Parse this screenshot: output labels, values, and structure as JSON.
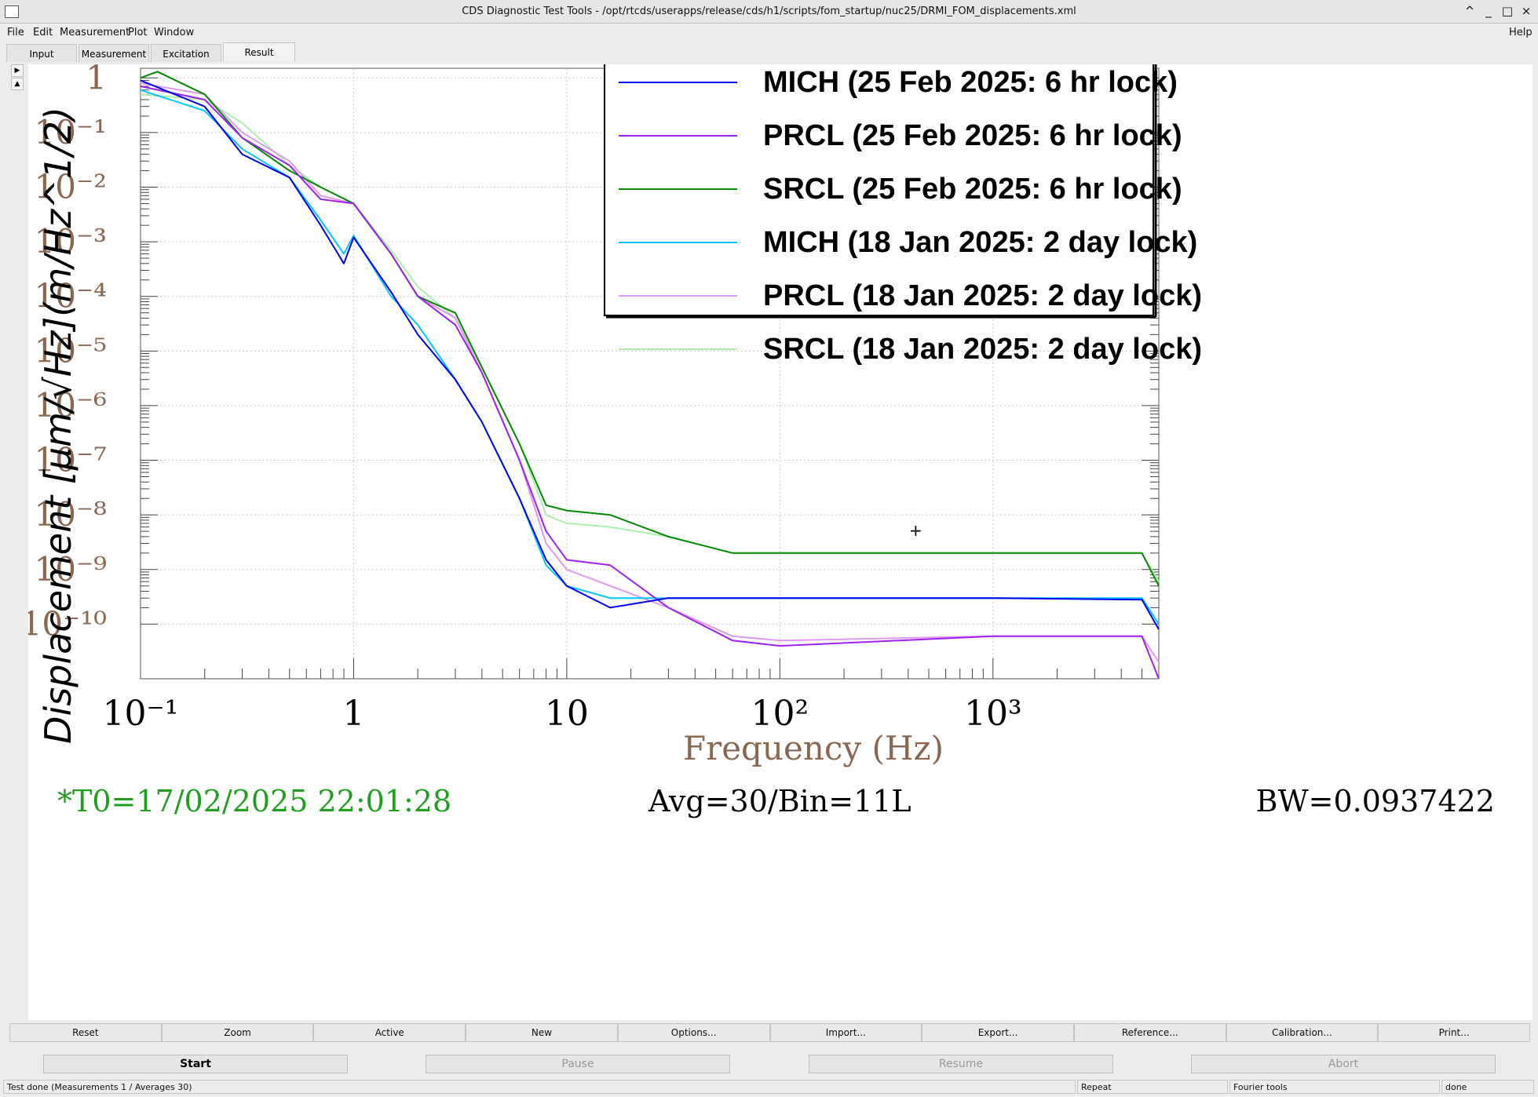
{
  "window": {
    "title": "CDS Diagnostic Test Tools - /opt/rtcds/userapps/release/cds/h1/scripts/fom_startup/nuc25/DRMI_FOM_displacements.xml",
    "controls": [
      "^",
      "_",
      "□",
      "×"
    ]
  },
  "menu": {
    "items": [
      "File",
      "Edit",
      "Measurement",
      "Plot",
      "Window"
    ],
    "help": "Help"
  },
  "tabs": [
    "Input",
    "Measurement",
    "Excitation",
    "Result"
  ],
  "active_tab": "Result",
  "plot": {
    "ylabel": "Displacement  [μm/√Hz](m/Hz^1/2)",
    "xlabel": "Frequency (Hz)",
    "x_ticklabels": [
      "10⁻¹",
      "1",
      "10",
      "10²",
      "10³"
    ],
    "y_ticklabels": [
      "1",
      "10⁻¹",
      "10⁻²",
      "10⁻³",
      "10⁻⁴",
      "10⁻⁵",
      "10⁻⁶",
      "10⁻⁷",
      "10⁻⁸",
      "10⁻⁹",
      "10⁻¹⁰"
    ],
    "info_left": "*T0=17/02/2025 22:01:28",
    "info_center": "Avg=30/Bin=11L",
    "info_right": "BW=0.0937422",
    "cursor_marker": "+"
  },
  "chart_data": {
    "type": "line",
    "xscale": "log",
    "yscale": "log",
    "xlim": [
      0.1,
      6000
    ],
    "ylim": [
      1e-11,
      1.5
    ],
    "grid": true,
    "legend_position": "top-right",
    "xlabel": "Frequency (Hz)",
    "ylabel": "Displacement [μm/√Hz](m/Hz^1/2)",
    "series": [
      {
        "name": "MICH  (25 Feb 2025: 6 hr lock)",
        "color": "#0000ee",
        "x": [
          0.1,
          0.2,
          0.3,
          0.5,
          0.7,
          0.9,
          1.0,
          1.5,
          2.0,
          3.0,
          4.0,
          6.0,
          8.0,
          10,
          16,
          30,
          100,
          1000,
          5000,
          6000
        ],
        "y": [
          0.9,
          0.3,
          0.04,
          0.015,
          0.002,
          0.0004,
          0.0012,
          0.00012,
          2e-05,
          3e-06,
          5e-07,
          2e-08,
          1.5e-09,
          5e-10,
          2e-10,
          3e-10,
          3e-10,
          3e-10,
          2.8e-10,
          8e-11
        ]
      },
      {
        "name": "PRCL  (25 Feb 2025: 6 hr lock)",
        "color": "#a020f0",
        "x": [
          0.1,
          0.2,
          0.3,
          0.5,
          0.7,
          1.0,
          1.5,
          2.0,
          3.0,
          4.0,
          6.0,
          8.0,
          10,
          16,
          30,
          60,
          100,
          1000,
          5000,
          6000
        ],
        "y": [
          0.7,
          0.4,
          0.08,
          0.025,
          0.006,
          0.005,
          0.0006,
          0.0001,
          3e-05,
          4e-06,
          1e-07,
          5e-09,
          1.5e-09,
          1.2e-09,
          2e-10,
          5e-11,
          4e-11,
          6e-11,
          6e-11,
          1e-11
        ]
      },
      {
        "name": "SRCL (25 Feb 2025: 6 hr lock)",
        "color": "#008a00",
        "x": [
          0.1,
          0.12,
          0.2,
          0.3,
          0.5,
          0.7,
          1.0,
          1.5,
          2.0,
          3.0,
          4.0,
          6.0,
          8.0,
          10,
          16,
          30,
          60,
          100,
          1000,
          5000,
          6000
        ],
        "y": [
          1.0,
          1.3,
          0.5,
          0.08,
          0.02,
          0.01,
          0.005,
          0.0006,
          0.0001,
          5e-05,
          5e-06,
          2e-07,
          1.5e-08,
          1.2e-08,
          1e-08,
          4e-09,
          2e-09,
          2e-09,
          2e-09,
          2e-09,
          5e-10
        ]
      },
      {
        "name": "MICH (18 Jan 2025: 2 day lock)",
        "color": "#00c8ff",
        "x": [
          0.1,
          0.2,
          0.3,
          0.5,
          0.7,
          0.9,
          1.0,
          1.5,
          2.0,
          3.0,
          4.0,
          6.0,
          8.0,
          10,
          16,
          30,
          100,
          1000,
          5000,
          6000
        ],
        "y": [
          0.6,
          0.25,
          0.05,
          0.015,
          0.0025,
          0.0006,
          0.0013,
          0.0001,
          3e-05,
          3e-06,
          5e-07,
          2e-08,
          1.2e-09,
          5e-10,
          3e-10,
          3e-10,
          3e-10,
          3e-10,
          3e-10,
          1e-10
        ]
      },
      {
        "name": "PRCL (18 Jan 2025: 2 day lock)",
        "color": "#dd99ee",
        "x": [
          0.1,
          0.2,
          0.3,
          0.5,
          0.7,
          1.0,
          1.5,
          2.0,
          3.0,
          4.0,
          6.0,
          8.0,
          10,
          16,
          30,
          60,
          100,
          1000,
          5000,
          6000
        ],
        "y": [
          0.8,
          0.5,
          0.1,
          0.03,
          0.007,
          0.005,
          0.0006,
          0.0001,
          4e-05,
          4e-06,
          1e-07,
          3e-09,
          1e-09,
          5e-10,
          2e-10,
          6e-11,
          5e-11,
          6e-11,
          6e-11,
          2e-11
        ]
      },
      {
        "name": "SRCL (18 Jan 2025: 2 day lock)",
        "color": "#aaf0aa",
        "x": [
          0.1,
          0.2,
          0.3,
          0.5,
          0.7,
          1.0,
          1.5,
          2.0,
          3.0,
          4.0,
          6.0,
          8.0,
          10,
          16,
          30,
          60,
          100,
          1000,
          5000,
          6000
        ],
        "y": [
          0.5,
          0.4,
          0.15,
          0.025,
          0.01,
          0.005,
          0.0007,
          0.00015,
          4e-05,
          5e-06,
          2e-07,
          1e-08,
          7e-09,
          6e-09,
          4e-09,
          2e-09,
          2e-09,
          2e-09,
          2e-09,
          6e-10
        ]
      }
    ]
  },
  "buttons": [
    "Reset",
    "Zoom",
    "Active",
    "New",
    "Options...",
    "Import...",
    "Export...",
    "Reference...",
    "Calibration...",
    "Print..."
  ],
  "controls": [
    {
      "label": "Start",
      "enabled": true
    },
    {
      "label": "Pause",
      "enabled": false
    },
    {
      "label": "Resume",
      "enabled": false
    },
    {
      "label": "Abort",
      "enabled": false
    }
  ],
  "status": {
    "message": "Test done (Measurements 1 / Averages 30)",
    "repeat": "Repeat",
    "tool": "Fourier tools",
    "state": "done"
  }
}
